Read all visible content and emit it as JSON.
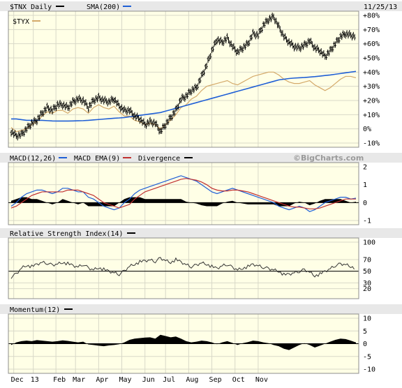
{
  "chart_data": [
    {
      "type": "line",
      "title": "$TNX Daily",
      "date": "11/25/13",
      "series": [
        {
          "name": "$TNX Daily",
          "style": "ohlc-bars",
          "color": "#000000",
          "values": [
            -2,
            -5,
            -4,
            0,
            4,
            6,
            11,
            15,
            13,
            17,
            17,
            15,
            19,
            21,
            20,
            15,
            20,
            22,
            20,
            19,
            21,
            16,
            13,
            13,
            9,
            7,
            3,
            5,
            4,
            -2,
            3,
            8,
            13,
            21,
            23,
            27,
            29,
            37,
            45,
            55,
            63,
            61,
            64,
            58,
            54,
            57,
            60,
            67,
            66,
            73,
            77,
            79,
            72,
            65,
            61,
            58,
            57,
            59,
            62,
            57,
            55,
            51,
            55,
            60,
            65,
            67,
            66,
            65
          ]
        },
        {
          "name": "$TYX",
          "color": "#d4a96a",
          "values": [
            1,
            -2,
            -1,
            0,
            3,
            5,
            9,
            12,
            11,
            13,
            13,
            11,
            14,
            15,
            14,
            11,
            15,
            17,
            15,
            14,
            16,
            12,
            9,
            9,
            6,
            5,
            3,
            4,
            3,
            0,
            3,
            6,
            10,
            15,
            17,
            21,
            23,
            27,
            30,
            31,
            32,
            33,
            34,
            32,
            31,
            33,
            35,
            37,
            38,
            39,
            40,
            40,
            38,
            35,
            33,
            32,
            32,
            33,
            34,
            31,
            29,
            27,
            29,
            32,
            35,
            37,
            37,
            36
          ]
        },
        {
          "name": "SMA(200)",
          "color": "#1f5fd6",
          "values": [
            7,
            7,
            6.5,
            6,
            6,
            6,
            6,
            5.8,
            5.6,
            5.5,
            5.5,
            5.5,
            5.6,
            5.7,
            5.8,
            6,
            6.3,
            6.6,
            6.9,
            7.2,
            7.5,
            7.7,
            8,
            8.5,
            9,
            9.5,
            10,
            10.5,
            11,
            11.5,
            12.5,
            13.5,
            14.5,
            15.5,
            16.5,
            17.5,
            18.5,
            19.5,
            20.5,
            21.5,
            22.5,
            23.5,
            24.5,
            25.5,
            26.5,
            27.5,
            28.5,
            29.5,
            30.5,
            31.5,
            32.5,
            33.5,
            34.5,
            35,
            35.5,
            35.8,
            36,
            36.2,
            36.5,
            36.8,
            37.2,
            37.6,
            38,
            38.5,
            39,
            39.5,
            40,
            40.5
          ]
        }
      ],
      "yticks": [
        "+80%",
        "+70%",
        "+60%",
        "+50%",
        "+40%",
        "+30%",
        "+20%",
        "+10%",
        "0%",
        "-10%"
      ],
      "ylim": [
        -10,
        80
      ]
    },
    {
      "type": "line",
      "title": "MACD(12,26)",
      "legend": [
        "MACD(12,26)",
        "MACD EMA(9)",
        "Divergence"
      ],
      "watermark": "©BigCharts.com",
      "series": [
        {
          "name": "MACD(12,26)",
          "color": "#1f5fd6",
          "values": [
            -0.2,
            0.0,
            0.3,
            0.5,
            0.6,
            0.7,
            0.7,
            0.6,
            0.5,
            0.6,
            0.8,
            0.8,
            0.7,
            0.6,
            0.6,
            0.3,
            0.2,
            0.0,
            -0.2,
            -0.3,
            -0.4,
            -0.3,
            0.0,
            0.2,
            0.5,
            0.7,
            0.8,
            0.9,
            1.0,
            1.1,
            1.2,
            1.3,
            1.4,
            1.5,
            1.4,
            1.3,
            1.2,
            1.0,
            0.8,
            0.6,
            0.5,
            0.6,
            0.7,
            0.8,
            0.7,
            0.6,
            0.5,
            0.4,
            0.3,
            0.2,
            0.1,
            0.0,
            -0.2,
            -0.3,
            -0.4,
            -0.3,
            -0.2,
            -0.3,
            -0.5,
            -0.4,
            -0.2,
            0.0,
            0.1,
            0.2,
            0.3,
            0.3,
            0.2,
            0.25
          ]
        },
        {
          "name": "MACD EMA(9)",
          "color": "#c03030",
          "values": [
            -0.3,
            -0.2,
            0.0,
            0.2,
            0.4,
            0.5,
            0.6,
            0.6,
            0.6,
            0.6,
            0.6,
            0.7,
            0.7,
            0.7,
            0.6,
            0.5,
            0.4,
            0.2,
            0.0,
            -0.1,
            -0.2,
            -0.3,
            -0.2,
            -0.1,
            0.2,
            0.4,
            0.6,
            0.7,
            0.8,
            0.9,
            1.0,
            1.1,
            1.2,
            1.3,
            1.35,
            1.3,
            1.25,
            1.15,
            1.0,
            0.8,
            0.7,
            0.65,
            0.65,
            0.7,
            0.7,
            0.65,
            0.6,
            0.5,
            0.4,
            0.3,
            0.2,
            0.1,
            0.0,
            -0.1,
            -0.2,
            -0.25,
            -0.25,
            -0.3,
            -0.35,
            -0.35,
            -0.3,
            -0.2,
            -0.1,
            0.0,
            0.1,
            0.2,
            0.2,
            0.2
          ]
        },
        {
          "name": "Divergence",
          "color": "#000000",
          "style": "histogram",
          "values": [
            0.1,
            0.2,
            0.3,
            0.3,
            0.2,
            0.2,
            0.1,
            0.0,
            -0.1,
            0.0,
            0.2,
            0.1,
            0.0,
            -0.1,
            0.0,
            -0.2,
            -0.2,
            -0.2,
            -0.2,
            -0.2,
            -0.2,
            0.0,
            0.2,
            0.3,
            0.3,
            0.3,
            0.2,
            0.2,
            0.2,
            0.2,
            0.2,
            0.2,
            0.2,
            0.2,
            0.05,
            0.0,
            -0.05,
            -0.15,
            -0.2,
            -0.2,
            -0.2,
            -0.05,
            0.05,
            0.1,
            0.0,
            -0.05,
            -0.1,
            -0.1,
            -0.1,
            -0.1,
            -0.1,
            -0.1,
            -0.2,
            -0.2,
            -0.2,
            -0.05,
            0.05,
            0.0,
            -0.15,
            -0.05,
            0.1,
            0.2,
            0.2,
            0.2,
            0.2,
            0.1,
            0.0,
            0.05
          ]
        }
      ],
      "yticks": [
        "2",
        "1",
        "0",
        "-1"
      ],
      "ylim": [
        -1,
        2
      ]
    },
    {
      "type": "line",
      "title": "Relative Strength Index(14)",
      "series": [
        {
          "name": "Relative Strength Index(14)",
          "color": "#000000",
          "values": [
            40,
            45,
            55,
            60,
            58,
            62,
            66,
            64,
            60,
            62,
            65,
            63,
            60,
            58,
            62,
            55,
            52,
            56,
            53,
            50,
            48,
            45,
            50,
            58,
            62,
            66,
            68,
            70,
            67,
            72,
            68,
            65,
            70,
            66,
            62,
            58,
            60,
            64,
            62,
            58,
            55,
            60,
            62,
            56,
            52,
            55,
            58,
            62,
            60,
            57,
            54,
            52,
            50,
            44,
            45,
            48,
            50,
            52,
            48,
            42,
            45,
            50,
            55,
            60,
            62,
            61,
            58,
            55
          ]
        }
      ],
      "reference_line": 50,
      "yticks": [
        "100",
        "70",
        "50",
        "30",
        "20"
      ],
      "ylim": [
        10,
        100
      ]
    },
    {
      "type": "bar",
      "title": "Momentum(12)",
      "series": [
        {
          "name": "Momentum(12)",
          "color": "#000000",
          "values": [
            -0.5,
            0.5,
            1,
            1.2,
            1,
            1.4,
            1.2,
            1,
            0.8,
            1,
            1.3,
            1.1,
            0.8,
            0.5,
            0.8,
            -0.3,
            -0.5,
            -0.8,
            -1,
            -0.7,
            -0.5,
            -0.2,
            0.5,
            1.5,
            2,
            2.2,
            2.4,
            2.5,
            2,
            3.5,
            3,
            2.5,
            2.8,
            2,
            1,
            0.5,
            0.8,
            1.2,
            1,
            0.5,
            -0.2,
            0.5,
            1,
            0.3,
            -0.5,
            0.2,
            0.6,
            1.2,
            1,
            0.5,
            0.2,
            -0.5,
            -1,
            -2,
            -2.5,
            -1.5,
            -0.5,
            0.2,
            -0.5,
            -1.5,
            -0.8,
            0,
            0.8,
            1.5,
            2,
            1.8,
            1.2,
            0.5
          ]
        }
      ],
      "reference_line": 0,
      "yticks": [
        "10",
        "5",
        "0",
        "-5",
        "-10"
      ],
      "ylim": [
        -10,
        10
      ]
    }
  ],
  "x_axis": {
    "labels": [
      "Dec",
      "13",
      "Feb",
      "Mar",
      "Apr",
      "May",
      "Jun",
      "Jul",
      "Aug",
      "Sep",
      "Oct",
      "Nov"
    ],
    "positions": [
      0.5,
      4.3,
      8.7,
      12.5,
      17,
      21.5,
      26,
      30,
      34.5,
      39,
      43.5,
      48
    ]
  }
}
